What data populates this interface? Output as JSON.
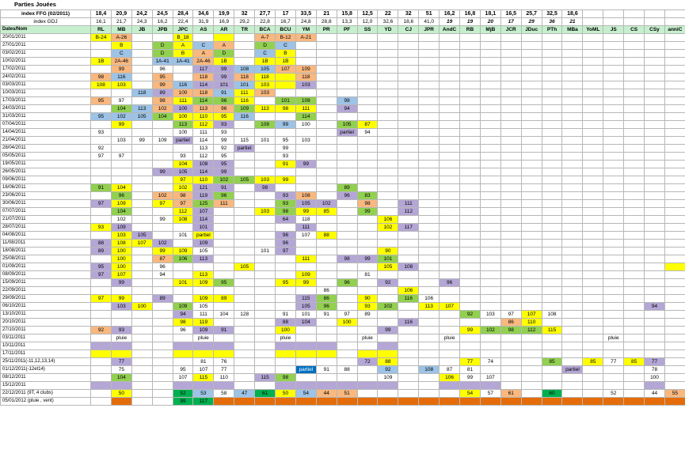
{
  "title": "Parties Jouées",
  "ffg_label": "index FFG (02/2011)",
  "gdj_label": "index GDJ",
  "header_label": "Dates/Nom",
  "players": [
    "RL",
    "MB",
    "JB",
    "JPB",
    "JPC",
    "AS",
    "AR",
    "TR",
    "BCA",
    "BCU",
    "YM",
    "PR",
    "PF",
    "SS",
    "YD",
    "CJ",
    "JPR",
    "AndC",
    "RB",
    "MjB",
    "JCR",
    "JDuc",
    "PTh",
    "MBa",
    "YoML",
    "JS",
    "CS",
    "CSy",
    "anniC"
  ],
  "ffg_index": [
    "18,4",
    "20,9",
    "24,2",
    "24,5",
    "28,4",
    "34,6",
    "19,9",
    "32",
    "27,7",
    "17",
    "33,5",
    "21",
    "15,8",
    "12,5",
    "22",
    "32",
    "51",
    "16,2",
    "16,8",
    "18,1",
    "16,5",
    "25,7",
    "32,5",
    "18,6",
    "",
    "",
    "",
    "",
    ""
  ],
  "gdj_index": [
    "16,1",
    "21,7",
    "24,3",
    "16,2",
    "22,4",
    "31,9",
    "16,9",
    "29,2",
    "22,8",
    "16,7",
    "24,8",
    "28,8",
    "13,3",
    "12,0",
    "32,6",
    "18,6",
    "41,0",
    "19",
    "19",
    "20",
    "17",
    "29",
    "36",
    "21",
    "",
    "",
    "",
    "",
    ""
  ],
  "colors": {
    "Y": "#ffff00",
    "O": "#f8b87f",
    "B": "#9dc3e6",
    "G": "#92d050",
    "P": "#b4a7d6",
    "K": "#7030a0",
    "R": "#e46c0a",
    "Q": "#00b050",
    "U": "#0070c0"
  },
  "rows": [
    {
      "date": "20/01/2011",
      "cells": {
        "RL": "Y:B-24",
        "MB": "O:A-26",
        "JPC": "Y:B_18",
        "AR": "Y:",
        "BCA": "O:A-7",
        "BCU": "O:B-12",
        "YM": "O:A-21"
      }
    },
    {
      "date": "27/01/2011",
      "cells": {
        "MB": "Y:B",
        "JPB": "G:D",
        "JPC": "Y:A",
        "AS": "B:C",
        "AR": "O:A",
        "BCA": "G:D",
        "BCU": "B:C"
      }
    },
    {
      "date": "03/02/2011",
      "cells": {
        "MB": "B:C",
        "JPB": "G:D",
        "JPC": "Y:B",
        "AS": "O:A",
        "AR": "G:D",
        "BCA": "B:C",
        "BCU": "Y:B"
      }
    },
    {
      "date": "10/02/2011",
      "cells": {
        "RL": "Y:1B",
        "MB": "O:2A-46",
        "JPB": "B:1A-41",
        "JPC": "B:1A-41",
        "AS": "O:2A-46",
        "AR": "Y:1B",
        "BCA": "Y:1B",
        "BCU": "Y:1B"
      }
    },
    {
      "date": "17/02/2011",
      "cells": {
        "MB": "O:99",
        "JPB": ":96",
        "AS": "P:117",
        "AR": "P:99",
        "TR": "B:108",
        "BCA": "B:105",
        "BCU": "O:107",
        "YM": "O:109"
      }
    },
    {
      "date": "24/02/2011",
      "cells": {
        "RL": "O:98",
        "MB": "B:116",
        "JPB": "O:95",
        "AS": "O:118",
        "AR": "P:99",
        "TR": "O:118",
        "BCA": "Y:118",
        "BCU": "Y:",
        "YM": "O:118"
      }
    },
    {
      "date": "03/03/2011",
      "cells": {
        "RL": "Y:108",
        "MB": "Y:103",
        "JPB": "O:99",
        "JPC": "B:116",
        "AS": "P:114",
        "AR": "P:101",
        "TR": "B:101",
        "BCA": "Y:103",
        "BCU": "Y:",
        "YM": "P:103"
      }
    },
    {
      "date": "10/03/2011",
      "cells": {
        "JB": "B:118",
        "JPB": "P:89",
        "JPC": "O:100",
        "AS": "O:118",
        "AR": "B:91",
        "TR": "Y:111",
        "BCA": "O:103"
      }
    },
    {
      "date": "17/03/2011",
      "cells": {
        "RL": "O:95",
        "MB": ":97",
        "JPB": "O:98",
        "JPC": "Y:111",
        "AS": "G:114",
        "AR": "G:96",
        "TR": "Y:116",
        "BCU": "G:101",
        "YM": "G:108",
        "PF": "B:98"
      }
    },
    {
      "date": "24/03/2011",
      "cells": {
        "MB": "G:104",
        "JB": "B:113",
        "JPB": "O:102",
        "JPC": "P:100",
        "AS": "O:113",
        "AR": "O:96",
        "TR": "G:109",
        "BCA": "Y:113",
        "BCU": "Y:98",
        "YM": "Y:111",
        "PF": "P:94"
      }
    },
    {
      "date": "31/03/2011",
      "cells": {
        "RL": "B:95",
        "MB": "B:102",
        "JB": "B:105",
        "JPB": "G:104",
        "JPC": "Y:100",
        "AS": "Y:110",
        "AR": "Y:95",
        "TR": "B:116",
        "YM": "G:114"
      }
    },
    {
      "date": "07/04/2011",
      "cells": {
        "MB": "Y:99",
        "JPC": "G:113",
        "AS": "Y:112",
        "AR": "P:93",
        "BCA": "G:108",
        "BCU": "B:99",
        "YM": ":100",
        "PF": "G:105",
        "SS": "Y:87"
      }
    },
    {
      "date": "14/04/2011",
      "cells": {
        "RL": ":93",
        "JPC": ":100",
        "AS": ":111",
        "AR": ":93",
        "PF": "P:partiel",
        "SS": ":94"
      }
    },
    {
      "date": "21/04/2011",
      "cells": {
        "MB": ":103",
        "JB": ":99",
        "JPB": ":109",
        "JPC": "P:partiel",
        "AS": ":114",
        "AR": ":99",
        "TR": ":115",
        "BCA": ":101",
        "BCU": ":95",
        "YM": ":103"
      }
    },
    {
      "date": "28/04/2011",
      "cells": {
        "RL": ":92",
        "AS": ":113",
        "AR": ":92",
        "TR": "P:partiel",
        "BCU": ":99"
      }
    },
    {
      "date": "05/05/2011",
      "cells": {
        "RL": ":97",
        "MB": ":97",
        "JPC": ":93",
        "AS": ":112",
        "AR": ":95",
        "BCU": ":93"
      }
    },
    {
      "date": "19/05/2011",
      "cells": {
        "JPC": "Y:104",
        "AS": "P:108",
        "AR": "P:95",
        "BCU": "Y:91",
        "YM": "P:99"
      }
    },
    {
      "date": "26/05/2011",
      "cells": {
        "JPB": "P:99",
        "JPC": "P:105",
        "AS": "P:114",
        "AR": "P:99"
      }
    },
    {
      "date": "09/06/2011",
      "cells": {
        "JPC": "Y:97",
        "AS": "Y:110",
        "AR": "G:102",
        "TR": "G:105",
        "BCA": "Y:103",
        "BCU": "Y:99"
      }
    },
    {
      "date": "16/06/2011",
      "cells": {
        "RL": "G:91",
        "MB": "Y:104",
        "JPC": "Y:102",
        "AS": "P:121",
        "AR": "P:91",
        "BCA": "P:98",
        "PF": "G:89"
      }
    },
    {
      "date": "23/06/2011",
      "cells": {
        "MB": "G:96",
        "JPB": "O:102",
        "JPC": "O:98",
        "AS": "P:119",
        "AR": "G:96",
        "BCU": "P:93",
        "YM": "O:108",
        "PF": "P:96",
        "SS": "G:83"
      }
    },
    {
      "date": "30/06/2011",
      "cells": {
        "RL": "P:97",
        "MB": "Y:109",
        "JPB": "Y:97",
        "JPC": "O:97",
        "AS": "G:125",
        "AR": "O:111",
        "BCU": "G:93",
        "YM": "P:105",
        "PR": "P:102",
        "SS": "O:98",
        "CJ": "P:111"
      }
    },
    {
      "date": "07/07/2011",
      "cells": {
        "MB": "G:104",
        "JPC": "Y:112",
        "AS": "P:107",
        "BCA": "Y:103",
        "BCU": "G:98",
        "YM": "Y:99",
        "PR": "Y:85",
        "SS": "G:99",
        "CJ": "P:112"
      }
    },
    {
      "date": "21/07/2011",
      "cells": {
        "MB": ":102",
        "JPB": ":99",
        "JPC": "Y:108",
        "AS": "P:114",
        "BCU": "P:64",
        "YM": ":118",
        "YD": "Y:106"
      }
    },
    {
      "date": "28/07/2011",
      "cells": {
        "RL": "Y:93",
        "MB": "P:109",
        "AS": "P:101",
        "YM": "P:111",
        "YD": "Y:102",
        "CJ": "P:117"
      }
    },
    {
      "date": "04/08/2011",
      "cells": {
        "MB": "Y:103",
        "JB": "P:105",
        "JPC": ":101",
        "AS": "Y:partiel",
        "BCU": "P:96",
        "YM": ":107",
        "PR": "Y:88"
      }
    },
    {
      "date": "11/08/2011",
      "cells": {
        "RL": "P:88",
        "MB": "Y:108",
        "JB": "Y:107",
        "JPB": "P:102",
        "AS": "P:109",
        "BCU": "P:96"
      }
    },
    {
      "date": "18/08/2011",
      "cells": {
        "RL": "P:89",
        "MB": "Y:100",
        "JPB": "Y:99",
        "JPC": "Y:109",
        "AS": ":105",
        "BCA": ":101",
        "BCU": "P:97",
        "YD": "Y:90"
      }
    },
    {
      "date": "25/08/2011",
      "cells": {
        "MB": "Y:100",
        "JPB": "O:87",
        "JPC": "G:106",
        "AS": "P:113",
        "YM": "Y:111",
        "PF": "P:98",
        "SS": "P:99",
        "YD": "G:101"
      }
    },
    {
      "date": "01/09/2011",
      "cells": {
        "RL": "P:95",
        "MB": "Y:100",
        "JPB": ":96",
        "TR": "Y:105",
        "YD": "Y:105",
        "CJ": "P:108",
        "anniC": "Y:"
      }
    },
    {
      "date": "08/09/2011",
      "cells": {
        "RL": "P:97",
        "MB": "Y:107",
        "JPB": ":94",
        "AS": "Y:113",
        "YM": "Y:109",
        "SS": ":81"
      }
    },
    {
      "date": "15/09/2011",
      "cells": {
        "MB": "P:99",
        "JPC": "Y:101",
        "AS": "Y:109",
        "AR": "G:95",
        "BCU": "Y:95",
        "YM": "Y:99",
        "PF": "G:96",
        "YD": "P:92",
        "AndC": "P:96"
      }
    },
    {
      "date": "22/09/2011",
      "cells": {
        "PR": ":86",
        "CJ": "Y:106"
      }
    },
    {
      "date": "29/09/2011",
      "cells": {
        "RL": "Y:97",
        "MB": "Y:99",
        "JPB": "P:89",
        "AS": "Y:109",
        "AR": "Y:89",
        "YM": "P:115",
        "PR": "G:86",
        "SS": "Y:90",
        "CJ": "G:116",
        "JPR": ":106"
      }
    },
    {
      "date": "06/10/2011",
      "cells": {
        "MB": "P:103",
        "JB": "Y:100",
        "JPC": "G:109",
        "AS": ":105",
        "YM": "P:105",
        "PR": "G:96",
        "SS": "Y:93",
        "YD": "G:102",
        "JPR": "Y:113",
        "AndC": "Y:107",
        "CSy": "P:94"
      }
    },
    {
      "date": "13/10/2011",
      "cells": {
        "JPC": "P:94",
        "AS": ":111",
        "AR": ":104",
        "TR": ":128",
        "BCU": ":91",
        "YM": ":101",
        "PR": ":91",
        "PF": ":97",
        "SS": ":89",
        "RB": "G:92",
        "MjB": ":103",
        "JCR": ":97",
        "JDuc": "Y:107",
        "PTh": ":108"
      }
    },
    {
      "date": "20/10/2011",
      "cells": {
        "JPC": "Y:98",
        "AS": "Y:119",
        "BCU": "P:88",
        "YM": "P:104",
        "PF": "Y:100",
        "CJ": "P:116",
        "JCR": "O:86",
        "JDuc": "Y:110"
      }
    },
    {
      "date": "27/10/2011",
      "cells": {
        "RL": "O:92",
        "MB": "P:93",
        "JPC": ":96",
        "AS": "P:109",
        "AR": "P:91",
        "BCU": "Y:100",
        "YD": "P:99",
        "RB": "Y:99",
        "MjB": "G:102",
        "JCR": "G:98",
        "JDuc": "G:112",
        "PTh": "Y:115"
      }
    },
    {
      "date": "03/11/2011",
      "cells": {
        "MB": ":pluie",
        "AS": ":pluie",
        "BCU": ":pluie",
        "SS": ":pluie",
        "AndC": ":pluie",
        "JS": ":pluie"
      }
    },
    {
      "date": "10/11/2011",
      "cells": {
        "RL": "P:",
        "MB": "P:",
        "JPC": "P:",
        "AS": "P:",
        "AR": "P:",
        "BCU": "P:",
        "YM": "P:",
        "PR": "P:",
        "YD": "P:"
      }
    },
    {
      "date": "17/11/2011",
      "cells": {
        "RL": "Y:",
        "MB": "Y:",
        "JPC": "Y:",
        "AS": "Y:",
        "AR": "Y:",
        "BCU": "Y:",
        "YM": "Y:",
        "PR": "Y:",
        "SS": "Y:",
        "YD": "Y:"
      }
    },
    {
      "date": "25/11/2011(-11,12,13,14)",
      "cells": {
        "MB": "P:77",
        "AS": ":81",
        "AR": ":76",
        "SS": "P:72",
        "YD": "Y:88",
        "RB": "Y:77",
        "MjB": ":74",
        "PTh": "G:85",
        "YoML": "Y:85",
        "JS": ":77",
        "CS": "Y:85",
        "CSy": "P:77"
      }
    },
    {
      "date": "01/12/2011(-12et14)",
      "cells": {
        "MB": ":75",
        "JPC": ":95",
        "AS": ":107",
        "AR": ":77",
        "YM": "U:partiel",
        "PR": ":91",
        "PF": ":88",
        "YD": "B:92",
        "JPR": "B:108",
        "AndC": ":87",
        "RB": ":81",
        "MBa": "P:partiel",
        "CSy": ":78"
      }
    },
    {
      "date": "08/12/2011",
      "cells": {
        "MB": "G:104",
        "JPC": ":107",
        "AS": "Y:115",
        "AR": ":110",
        "BCA": "P:115",
        "BCU": "G:98",
        "YD": ":109",
        "AndC": "Y:106",
        "RB": ":99",
        "MjB": ":107",
        "CSy": ":100"
      }
    },
    {
      "date": "15/12/2011",
      "cells": {
        "RL": "P:",
        "MB": "P:",
        "JPC": "P:",
        "AS": "P:",
        "AR": "P:",
        "BCU": "P:",
        "YM": "P:",
        "PR": "P:",
        "PF": "P:",
        "SS": "P:",
        "YD": "P:",
        "AndC": "P:",
        "RB": "P:",
        "MjB": "P:",
        "CSy": "P:"
      }
    },
    {
      "date": "22/12/2011 (9T, 4 clubs)",
      "cells": {
        "MB": "Y:50",
        "JPC": "Q:52",
        "AS": "B:53",
        "AR": ":58",
        "TR": "B:47",
        "BCA": "Q:61",
        "BCU": "Y:50",
        "YM": "B:54",
        "PR": "O:44",
        "PF": "O:51",
        "RB": "Y:54",
        "MjB": ":57",
        "JCR": "O:61",
        "PTh": "Q:60",
        "JS": ":52",
        "CSy": ":44",
        "anniC": "O:55"
      }
    },
    {
      "date": "05/01/2012 (pluie , vent)",
      "cells": {
        "MB": "R:",
        "JPC": "Q:99",
        "AS": "Q:117",
        "AR": "R:",
        "TR": "R:",
        "BCA": "R:",
        "BCU": "R:",
        "YM": "R:",
        "PR": "R:",
        "PF": "R:",
        "SS": "R:",
        "YD": "R:",
        "CJ": "R:",
        "JPR": "R:",
        "AndC": "R:",
        "RB": "R:",
        "MjB": "R:",
        "JCR": "R:",
        "JDuc": "R:",
        "PTh": "R:",
        "MBa": "R:",
        "YoML": "R:",
        "JS": "R:",
        "CS": "R:",
        "CSy": "R:",
        "anniC": "R:"
      }
    }
  ]
}
